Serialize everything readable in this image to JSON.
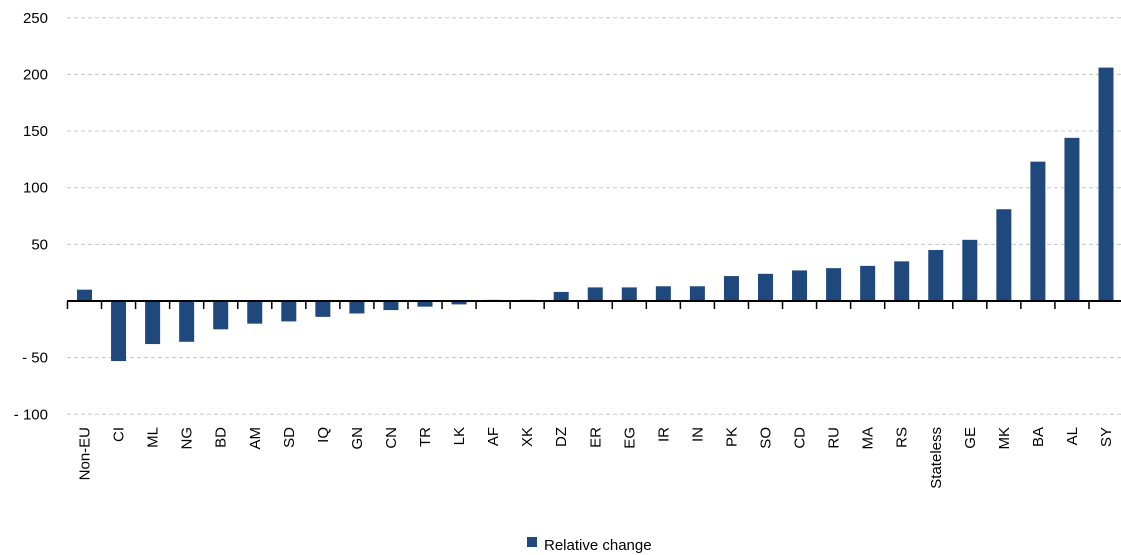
{
  "chart_data": {
    "type": "bar",
    "categories": [
      "Non-EU",
      "CI",
      "ML",
      "NG",
      "BD",
      "AM",
      "SD",
      "IQ",
      "GN",
      "CN",
      "TR",
      "LK",
      "AF",
      "XK",
      "DZ",
      "ER",
      "EG",
      "IR",
      "IN",
      "PK",
      "SO",
      "CD",
      "RU",
      "MA",
      "RS",
      "Stateless",
      "GE",
      "MK",
      "BA",
      "AL",
      "SY"
    ],
    "series": [
      {
        "name": "Relative change",
        "color": "#1f497d",
        "values": [
          10,
          -53,
          -38,
          -36,
          -25,
          -20,
          -18,
          -14,
          -11,
          -8,
          -5,
          -3,
          1,
          1,
          8,
          12,
          12,
          13,
          13,
          22,
          24,
          27,
          29,
          31,
          35,
          45,
          54,
          81,
          123,
          144,
          206
        ]
      }
    ],
    "yaxis": {
      "ylim": [
        -100,
        250
      ],
      "ticks": [
        -100,
        -50,
        50,
        100,
        150,
        200,
        250
      ],
      "tick_labels": [
        "- 100",
        "- 50",
        "50",
        "100",
        "150",
        "200",
        "250"
      ]
    },
    "grid": true,
    "legend_position": "bottom-center",
    "title": "",
    "xlabel": "",
    "ylabel": ""
  }
}
